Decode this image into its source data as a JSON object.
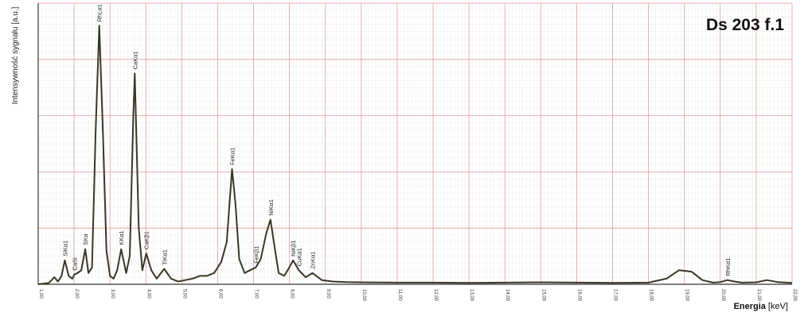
{
  "chart_data": {
    "type": "line",
    "title": "Ds 203 f.1",
    "xlabel": "Energia",
    "xlabel_unit": "[keV]",
    "ylabel": "Intensywność sygnału [a.u.]",
    "xlim": [
      1.0,
      22.0
    ],
    "ylim": [
      0,
      100
    ],
    "grid": true,
    "x_ticks": [
      "1,00",
      "2,00",
      "3,00",
      "4,00",
      "5,00",
      "6,00",
      "7,00",
      "8,00",
      "9,00",
      "10,00",
      "11,00",
      "12,00",
      "13,00",
      "14,00",
      "15,00",
      "16,00",
      "17,00",
      "18,00",
      "19,00",
      "20,00",
      "21,00",
      "22,00"
    ],
    "series": [
      {
        "x": [
          1.0,
          1.3,
          1.45,
          1.55,
          1.65,
          1.74,
          1.85,
          1.95,
          2.01,
          2.1,
          2.2,
          2.31,
          2.4,
          2.5,
          2.6,
          2.7,
          2.8,
          2.9,
          3.0,
          3.1,
          3.2,
          3.31,
          3.45,
          3.55,
          3.65,
          3.69,
          3.8,
          3.9,
          4.01,
          4.15,
          4.3,
          4.51,
          4.7,
          4.9,
          5.1,
          5.3,
          5.5,
          5.7,
          5.9,
          6.1,
          6.25,
          6.4,
          6.5,
          6.6,
          6.75,
          6.9,
          7.06,
          7.2,
          7.35,
          7.47,
          7.6,
          7.7,
          7.85,
          7.95,
          8.1,
          8.26,
          8.45,
          8.64,
          8.9,
          9.2,
          9.6,
          10.0,
          11.0,
          12.0,
          13.0,
          14.0,
          15.0,
          16.0,
          17.0,
          18.0,
          18.5,
          18.85,
          19.2,
          19.5,
          19.8,
          20.0,
          20.2,
          20.4,
          20.6,
          21.0,
          21.3,
          21.6,
          22.0
        ],
        "y": [
          0,
          0.5,
          2.5,
          1,
          3,
          8.5,
          3,
          2,
          3.5,
          4,
          5,
          12.5,
          4,
          6,
          55,
          92,
          55,
          12,
          3,
          2,
          5,
          12.5,
          4,
          10,
          60,
          75,
          20,
          5,
          11,
          5,
          2,
          5.5,
          2,
          1,
          1.5,
          2,
          3,
          3,
          4,
          8,
          15,
          41,
          28,
          9,
          4,
          5,
          6,
          9,
          18,
          23,
          12,
          4,
          3,
          5,
          8.5,
          5,
          2.5,
          4,
          1.5,
          1,
          0.8,
          0.7,
          0.6,
          0.6,
          0.5,
          0.6,
          0.7,
          0.6,
          0.5,
          0.6,
          2,
          5,
          4.5,
          1.5,
          0.6,
          0.8,
          1.5,
          1,
          0.6,
          0.7,
          1.5,
          0.8,
          0.5
        ]
      }
    ],
    "annotations": [
      {
        "label": "SiKα1",
        "x": 1.74,
        "y": 8.5
      },
      {
        "label": "CaSi",
        "x": 2.01,
        "y": 3.5
      },
      {
        "label": "SKα",
        "x": 2.31,
        "y": 12.5
      },
      {
        "label": "RhLα1",
        "x": 2.7,
        "y": 92
      },
      {
        "label": "KKα1",
        "x": 3.31,
        "y": 12.5
      },
      {
        "label": "CaKα1",
        "x": 3.69,
        "y": 75
      },
      {
        "label": "CaKβ1",
        "x": 4.01,
        "y": 11
      },
      {
        "label": "TiKα1",
        "x": 4.51,
        "y": 5.5
      },
      {
        "label": "FeKα1",
        "x": 6.4,
        "y": 41
      },
      {
        "label": "FeKβ1",
        "x": 7.06,
        "y": 6
      },
      {
        "label": "NiKα1",
        "x": 7.47,
        "y": 23
      },
      {
        "label": "NiKβ1",
        "x": 8.1,
        "y": 8.5
      },
      {
        "label": "CuKα1",
        "x": 8.26,
        "y": 5
      },
      {
        "label": "ZnKα1",
        "x": 8.64,
        "y": 4
      },
      {
        "label": "RhKα1",
        "x": 20.2,
        "y": 1.5
      }
    ],
    "colors": {
      "line": "#3a3626",
      "major_grid": "#e59a9a",
      "minor_grid": "#ececec",
      "axis": "#333333"
    }
  }
}
